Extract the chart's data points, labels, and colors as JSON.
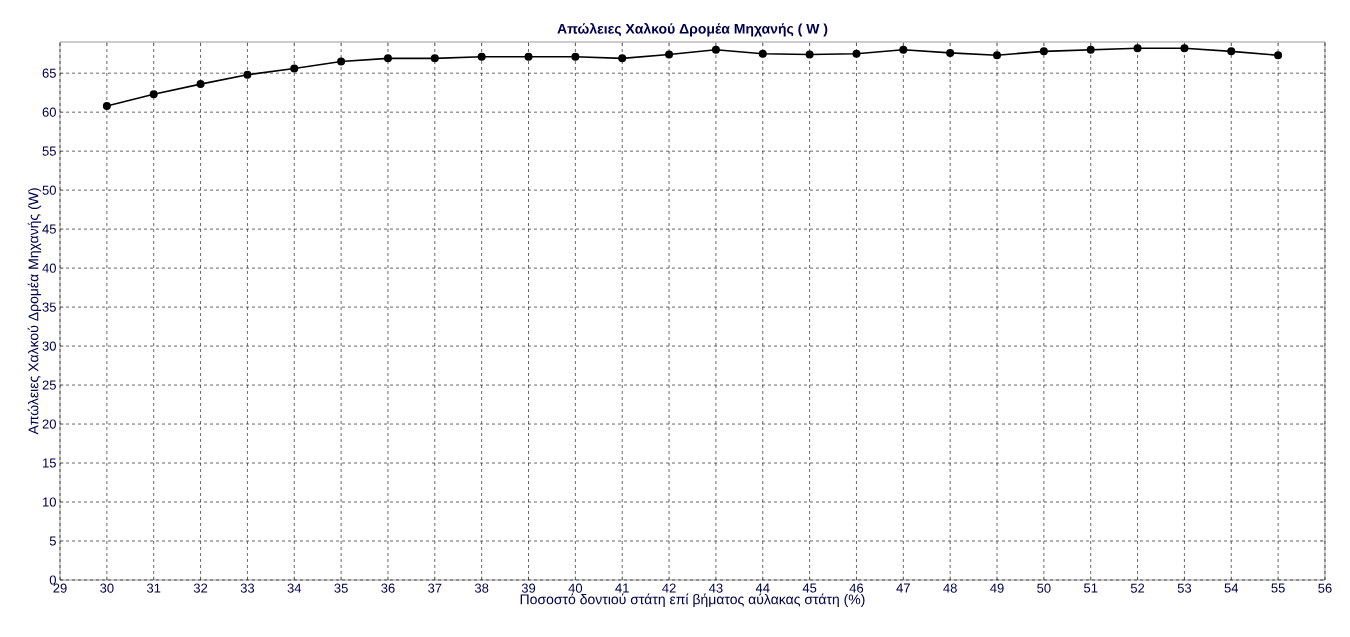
{
  "chart_data": {
    "type": "line",
    "title": "Απώλειες Χαλκού Δρομέα Μηχανής  ( W )",
    "xlabel": "Ποσοστό δοντιού στάτη επί βήματος αύλακας στάτη (%)",
    "ylabel": "Απώλειες Χαλκού Δρομέα Μηχανής (W)",
    "x": [
      30,
      31,
      32,
      33,
      34,
      35,
      36,
      37,
      38,
      39,
      40,
      41,
      42,
      43,
      44,
      45,
      46,
      47,
      48,
      49,
      50,
      51,
      52,
      53,
      54,
      55
    ],
    "series": [
      {
        "color": "#000000",
        "values": [
          60.8,
          62.3,
          63.6,
          64.8,
          65.6,
          66.5,
          66.9,
          66.9,
          67.1,
          67.1,
          67.1,
          66.9,
          67.4,
          68.0,
          67.5,
          67.4,
          67.5,
          68.0,
          67.6,
          67.3,
          67.8,
          68.0,
          68.2,
          68.2,
          67.8,
          67.3
        ]
      }
    ],
    "xlim": [
      29,
      56
    ],
    "ylim": [
      0,
      69
    ],
    "xticks": [
      29,
      30,
      31,
      32,
      33,
      34,
      35,
      36,
      37,
      38,
      39,
      40,
      41,
      42,
      43,
      44,
      45,
      46,
      47,
      48,
      49,
      50,
      51,
      52,
      53,
      54,
      55,
      56
    ],
    "yticks": [
      0,
      5,
      10,
      15,
      20,
      25,
      30,
      35,
      40,
      45,
      50,
      55,
      60,
      65
    ],
    "grid": true,
    "marker": "circle",
    "line_style": "solid"
  }
}
